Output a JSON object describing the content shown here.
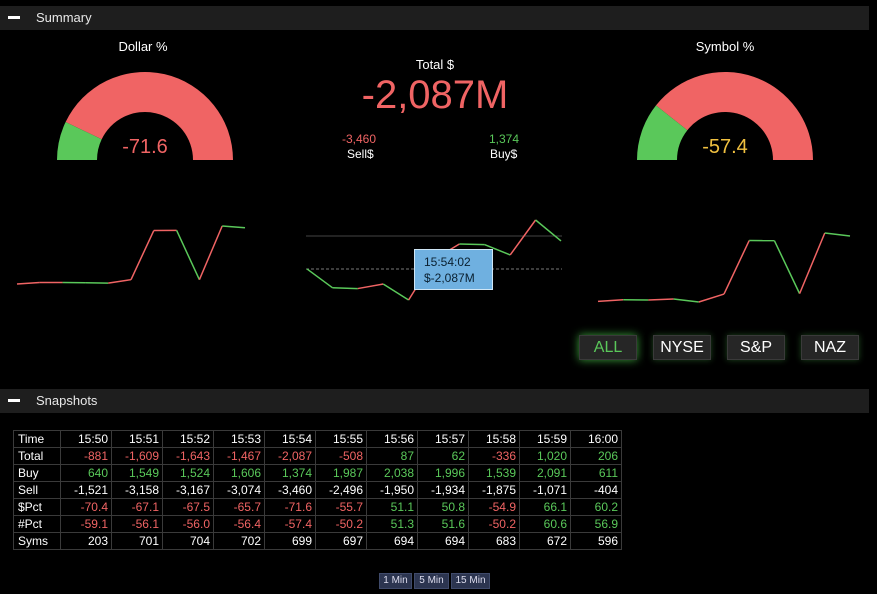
{
  "summary_section": {
    "title": "Summary"
  },
  "snapshots_section": {
    "title": "Snapshots"
  },
  "gauges": {
    "dollar": {
      "title": "Dollar %",
      "value": "-71.6",
      "value_num": -71.6,
      "value_color": "#f06464"
    },
    "symbol": {
      "title": "Symbol %",
      "value": "-57.4",
      "value_num": -57.4,
      "value_color": "#f0c040"
    }
  },
  "total": {
    "label": "Total $",
    "value": "-2,087M",
    "sell": {
      "value": "-3,460",
      "label": "Sell$"
    },
    "buy": {
      "value": "1,374",
      "label": "Buy$"
    }
  },
  "tooltip": {
    "time": "15:54:02",
    "value": "$-2,087M"
  },
  "colors": {
    "up": "#5ac85a",
    "down": "#f06464",
    "accent": "#f0c040",
    "tooltip_bg": "#6fb0e0"
  },
  "chart_data": [
    {
      "type": "line",
      "x": [
        "15:50",
        "15:51",
        "15:52",
        "15:53",
        "15:54",
        "15:55",
        "15:56",
        "15:57",
        "15:58",
        "15:59",
        "16:00"
      ],
      "series": [
        {
          "values": [
            -59.1,
            -56.1,
            -56.0,
            -56.4,
            -57.4,
            -50.2,
            51.3,
            51.6,
            -50.2,
            60.6,
            56.9
          ]
        }
      ]
    },
    {
      "type": "line",
      "x": [
        "15:50",
        "15:51",
        "15:52",
        "15:53",
        "15:54",
        "15:55",
        "15:56",
        "15:57",
        "15:58",
        "15:59",
        "16:00"
      ],
      "series": [
        {
          "values": [
            -881,
            -1609,
            -1643,
            -1467,
            -2087,
            -508,
            87,
            62,
            -336,
            1020,
            206
          ]
        }
      ]
    },
    {
      "type": "line",
      "x": [
        "15:50",
        "15:51",
        "15:52",
        "15:53",
        "15:54",
        "15:55",
        "15:56",
        "15:57",
        "15:58",
        "15:59",
        "16:00"
      ],
      "series": [
        {
          "values": [
            -70.4,
            -67.1,
            -67.5,
            -65.7,
            -71.6,
            -55.7,
            51.1,
            50.8,
            -54.9,
            66.1,
            60.2
          ]
        }
      ]
    }
  ],
  "markets": [
    {
      "label": "ALL",
      "active": true
    },
    {
      "label": "NYSE",
      "active": false
    },
    {
      "label": "S&P",
      "active": false
    },
    {
      "label": "NAZ",
      "active": false
    }
  ],
  "table": {
    "header": [
      "Time",
      "15:50",
      "15:51",
      "15:52",
      "15:53",
      "15:54",
      "15:55",
      "15:56",
      "15:57",
      "15:58",
      "15:59",
      "16:00"
    ],
    "rows": [
      {
        "label": "Total",
        "values": [
          "-881",
          "-1,609",
          "-1,643",
          "-1,467",
          "-2,087",
          "-508",
          "87",
          "62",
          "-336",
          "1,020",
          "206"
        ],
        "colored": true
      },
      {
        "label": "Buy",
        "values": [
          "640",
          "1,549",
          "1,524",
          "1,606",
          "1,374",
          "1,987",
          "2,038",
          "1,996",
          "1,539",
          "2,091",
          "611"
        ],
        "color": "#5ac85a"
      },
      {
        "label": "Sell",
        "values": [
          "-1,521",
          "-3,158",
          "-3,167",
          "-3,074",
          "-3,460",
          "-2,496",
          "-1,950",
          "-1,934",
          "-1,875",
          "-1,071",
          "-404"
        ],
        "color": "#ffffff"
      },
      {
        "label": "$Pct",
        "values": [
          "-70.4",
          "-67.1",
          "-67.5",
          "-65.7",
          "-71.6",
          "-55.7",
          "51.1",
          "50.8",
          "-54.9",
          "66.1",
          "60.2"
        ],
        "colored": true
      },
      {
        "label": "#Pct",
        "values": [
          "-59.1",
          "-56.1",
          "-56.0",
          "-56.4",
          "-57.4",
          "-50.2",
          "51.3",
          "51.6",
          "-50.2",
          "60.6",
          "56.9"
        ],
        "colored": true
      },
      {
        "label": "Syms",
        "values": [
          "203",
          "701",
          "704",
          "702",
          "699",
          "697",
          "694",
          "694",
          "683",
          "672",
          "596"
        ],
        "color": "#ffffff"
      }
    ]
  },
  "intervals": [
    {
      "label": "1 Min"
    },
    {
      "label": "5 Min"
    },
    {
      "label": "15 Min"
    }
  ]
}
